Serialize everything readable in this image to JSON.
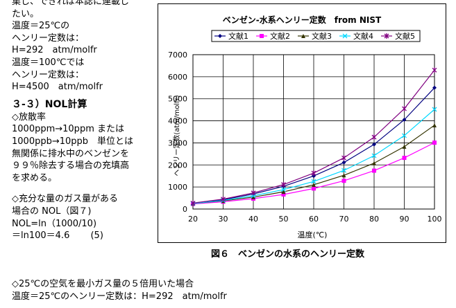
{
  "left_column": {
    "lines": [
      "集し、できれば本誌に連載し",
      "たい。",
      "温度＝25℃の",
      "ヘンリー定数は：",
      "H=292　atm/molfr",
      "温度＝100℃では",
      "ヘンリー定数は：",
      "H=4500　atm/molfr"
    ],
    "heading": "３-３）NOL計算",
    "lines2": [
      "◇放散率",
      "1000ppm→10ppm または",
      "1000ppb→10ppb　単位とは",
      "無関係に排水中のベンゼンを",
      "９９％除去する場合の充填高",
      "を求める。"
    ],
    "lines3": [
      "◇充分な量のガス量がある",
      "場合の NOL（図７)",
      "NOL=ln（1000/10)",
      "＝ln100＝4.6　　 (5)"
    ]
  },
  "bottom_text": {
    "lines": [
      "◇25℃の空気を最小ガス量の５倍用いた場合",
      "温度＝25℃のヘンリー定数は：H=292　atm/molfr"
    ]
  },
  "figure_caption": "図６　ベンゼンの水系のヘンリー定数",
  "chart_data": {
    "type": "line",
    "title": "ベンゼン-水系ヘンリー定数　from NIST",
    "xlabel": "温度(℃)",
    "ylabel": "ヘンリー定数(atm/molfr)",
    "x": [
      20,
      30,
      40,
      50,
      60,
      70,
      80,
      90,
      100
    ],
    "xlim": [
      20,
      100
    ],
    "ylim": [
      0,
      7000
    ],
    "x_ticks": [
      "20",
      "30",
      "40",
      "50",
      "60",
      "70",
      "80",
      "90",
      "100"
    ],
    "y_ticks": [
      "0",
      "1000",
      "2000",
      "3000",
      "4000",
      "5000",
      "6000",
      "7000"
    ],
    "grid": true,
    "legend_position": "top",
    "series": [
      {
        "name": "文献1",
        "color": "#000080",
        "marker": "diamond",
        "values": [
          250,
          420,
          680,
          1030,
          1500,
          2110,
          2930,
          4050,
          5500
        ]
      },
      {
        "name": "文献2",
        "color": "#ff00ff",
        "marker": "square",
        "values": [
          230,
          330,
          470,
          660,
          930,
          1280,
          1740,
          2320,
          3010
        ]
      },
      {
        "name": "文献3",
        "color": "#333300",
        "marker": "triangle",
        "values": [
          250,
          370,
          540,
          780,
          1100,
          1530,
          2080,
          2830,
          3800
        ]
      },
      {
        "name": "文献4",
        "color": "#00d8ff",
        "marker": "x",
        "values": [
          250,
          390,
          600,
          880,
          1250,
          1750,
          2420,
          3330,
          4520
        ]
      },
      {
        "name": "文献5",
        "color": "#800080",
        "marker": "asterisk",
        "values": [
          270,
          450,
          730,
          1110,
          1630,
          2320,
          3260,
          4550,
          6300
        ]
      }
    ]
  }
}
